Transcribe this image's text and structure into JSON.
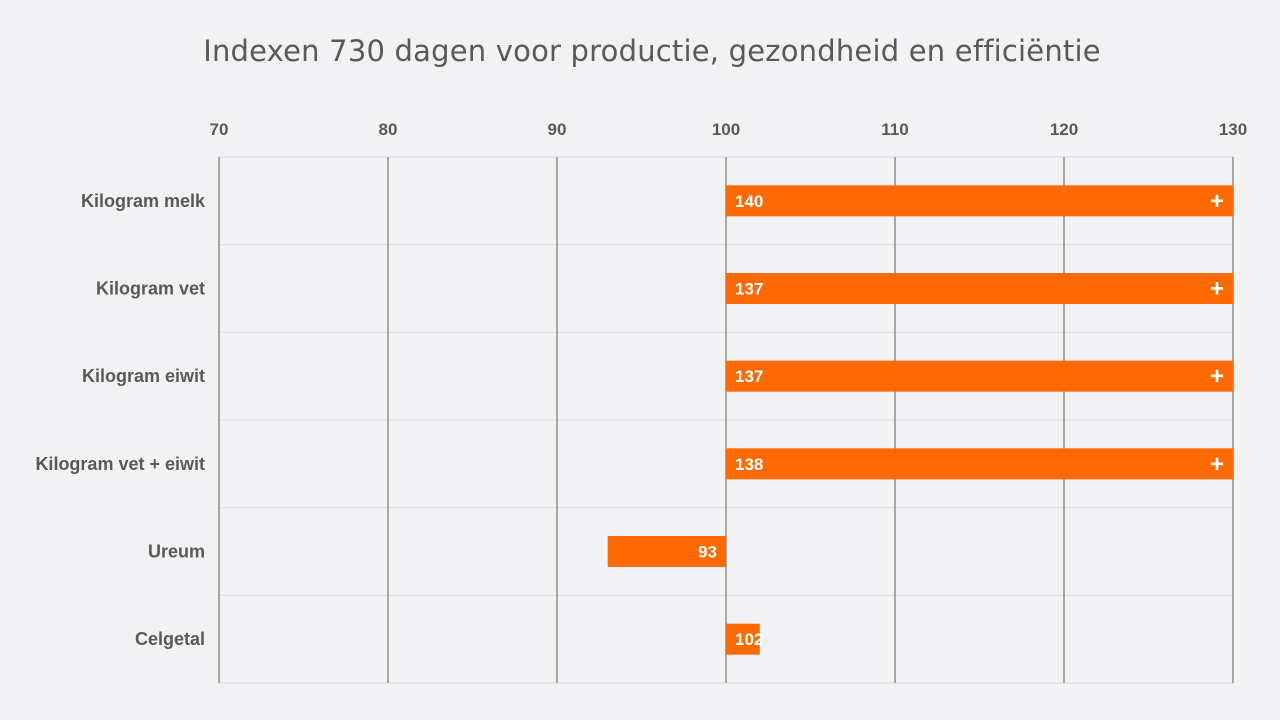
{
  "chart_data": {
    "type": "bar",
    "orientation": "horizontal",
    "title": "Indexen 730 dagen voor productie, gezondheid en efficiëntie",
    "xlim": [
      70,
      130
    ],
    "x_ticks": [
      "70",
      "80",
      "90",
      "100",
      "110",
      "120",
      "130"
    ],
    "baseline": 100,
    "categories": [
      "Kilogram melk",
      "Kilogram vet",
      "Kilogram eiwit",
      "Kilogram vet + eiwit",
      "Ureum",
      "Celgetal"
    ],
    "values": [
      140,
      137,
      137,
      138,
      93,
      102
    ],
    "data_labels": [
      "140",
      "137",
      "137",
      "138",
      "93",
      "102"
    ],
    "overflow_marker": "+",
    "bar_color": "#ff6a00",
    "grid": true,
    "axis_position": "top"
  }
}
